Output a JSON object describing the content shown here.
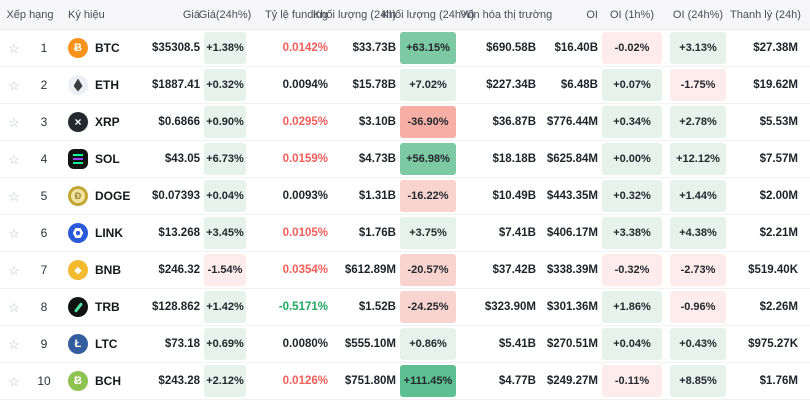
{
  "colors": {
    "accent_positive_text": "#1fa860",
    "accent_negative_text": "#f25e5a",
    "pill_green_light": "#e5f3ec",
    "pill_green_strong": "#7dc9a3",
    "pill_green_extra": "#5ec092",
    "pill_pink_light": "#fdeceb",
    "pill_pink_mid": "#f9d4cf",
    "pill_pink_strong": "#f6aea5",
    "header_bg": "#f6f6f8",
    "text_dark": "#1e2329"
  },
  "icons": {
    "star": {
      "glyph": "☆"
    },
    "btc": {
      "glyph": "Ƀ"
    },
    "eth": {
      "glyph": ""
    },
    "xrp": {
      "glyph": "×"
    },
    "sol": {
      "glyph": ""
    },
    "doge": {
      "glyph": "Ð"
    },
    "link": {
      "glyph": ""
    },
    "bnb": {
      "glyph": "◆"
    },
    "trb": {
      "glyph": ""
    },
    "ltc": {
      "glyph": "Ł"
    },
    "bch": {
      "glyph": "Ƀ"
    }
  },
  "table": {
    "headers": {
      "rank": "Xếp hạng",
      "symbol": "Ký hiệu",
      "price": "Giá",
      "price_24h": "Giá(24h%)",
      "funding": "Tỷ lệ funding",
      "volume_24h": "Khối lượng (24h)",
      "volume_24h_pct": "Khối lượng (24h%)",
      "market_cap": "Vốn hóa thị trường",
      "oi": "OI",
      "oi_1h_pct": "OI (1h%)",
      "oi_24h_pct": "OI (24h%)",
      "liquidation_24h": "Thanh lý (24h)"
    },
    "rows": [
      {
        "rank": "1",
        "symbol": "BTC",
        "icon": "btc",
        "price": "$35308.5",
        "price_24h": "+1.38%",
        "funding": "0.0142%",
        "funding_tone": "red",
        "volume_24h": "$33.73B",
        "volume_24h_pct": "+63.15%",
        "market_cap": "$690.58B",
        "oi": "$16.40B",
        "oi_1h_pct": "-0.02%",
        "oi_24h_pct": "+3.13%",
        "liquidation_24h": "$27.38M"
      },
      {
        "rank": "2",
        "symbol": "ETH",
        "icon": "eth",
        "price": "$1887.41",
        "price_24h": "+0.32%",
        "funding": "0.0094%",
        "funding_tone": "dark",
        "volume_24h": "$15.78B",
        "volume_24h_pct": "+7.02%",
        "market_cap": "$227.34B",
        "oi": "$6.48B",
        "oi_1h_pct": "+0.07%",
        "oi_24h_pct": "-1.75%",
        "liquidation_24h": "$19.62M"
      },
      {
        "rank": "3",
        "symbol": "XRP",
        "icon": "xrp",
        "price": "$0.6866",
        "price_24h": "+0.90%",
        "funding": "0.0295%",
        "funding_tone": "red",
        "volume_24h": "$3.10B",
        "volume_24h_pct": "-36.90%",
        "market_cap": "$36.87B",
        "oi": "$776.44M",
        "oi_1h_pct": "+0.34%",
        "oi_24h_pct": "+2.78%",
        "liquidation_24h": "$5.53M"
      },
      {
        "rank": "4",
        "symbol": "SOL",
        "icon": "sol",
        "price": "$43.05",
        "price_24h": "+6.73%",
        "funding": "0.0159%",
        "funding_tone": "red",
        "volume_24h": "$4.73B",
        "volume_24h_pct": "+56.98%",
        "market_cap": "$18.18B",
        "oi": "$625.84M",
        "oi_1h_pct": "+0.00%",
        "oi_24h_pct": "+12.12%",
        "liquidation_24h": "$7.57M"
      },
      {
        "rank": "5",
        "symbol": "DOGE",
        "icon": "doge",
        "price": "$0.07393",
        "price_24h": "+0.04%",
        "funding": "0.0093%",
        "funding_tone": "dark",
        "volume_24h": "$1.31B",
        "volume_24h_pct": "-16.22%",
        "market_cap": "$10.49B",
        "oi": "$443.35M",
        "oi_1h_pct": "+0.32%",
        "oi_24h_pct": "+1.44%",
        "liquidation_24h": "$2.00M"
      },
      {
        "rank": "6",
        "symbol": "LINK",
        "icon": "link",
        "price": "$13.268",
        "price_24h": "+3.45%",
        "funding": "0.0105%",
        "funding_tone": "red",
        "volume_24h": "$1.76B",
        "volume_24h_pct": "+3.75%",
        "market_cap": "$7.41B",
        "oi": "$406.17M",
        "oi_1h_pct": "+3.38%",
        "oi_24h_pct": "+4.38%",
        "liquidation_24h": "$2.21M"
      },
      {
        "rank": "7",
        "symbol": "BNB",
        "icon": "bnb",
        "price": "$246.32",
        "price_24h": "-1.54%",
        "funding": "0.0354%",
        "funding_tone": "red",
        "volume_24h": "$612.89M",
        "volume_24h_pct": "-20.57%",
        "market_cap": "$37.42B",
        "oi": "$338.39M",
        "oi_1h_pct": "-0.32%",
        "oi_24h_pct": "-2.73%",
        "liquidation_24h": "$519.40K"
      },
      {
        "rank": "8",
        "symbol": "TRB",
        "icon": "trb",
        "price": "$128.862",
        "price_24h": "+1.42%",
        "funding": "-0.5171%",
        "funding_tone": "green",
        "volume_24h": "$1.52B",
        "volume_24h_pct": "-24.25%",
        "market_cap": "$323.90M",
        "oi": "$301.36M",
        "oi_1h_pct": "+1.86%",
        "oi_24h_pct": "-0.96%",
        "liquidation_24h": "$2.26M"
      },
      {
        "rank": "9",
        "symbol": "LTC",
        "icon": "ltc",
        "price": "$73.18",
        "price_24h": "+0.69%",
        "funding": "0.0080%",
        "funding_tone": "dark",
        "volume_24h": "$555.10M",
        "volume_24h_pct": "+0.86%",
        "market_cap": "$5.41B",
        "oi": "$270.51M",
        "oi_1h_pct": "+0.04%",
        "oi_24h_pct": "+0.43%",
        "liquidation_24h": "$975.27K"
      },
      {
        "rank": "10",
        "symbol": "BCH",
        "icon": "bch",
        "price": "$243.28",
        "price_24h": "+2.12%",
        "funding": "0.0126%",
        "funding_tone": "red",
        "volume_24h": "$751.80M",
        "volume_24h_pct": "+111.45%",
        "market_cap": "$4.77B",
        "oi": "$249.27M",
        "oi_1h_pct": "-0.11%",
        "oi_24h_pct": "+8.85%",
        "liquidation_24h": "$1.76M"
      }
    ]
  }
}
